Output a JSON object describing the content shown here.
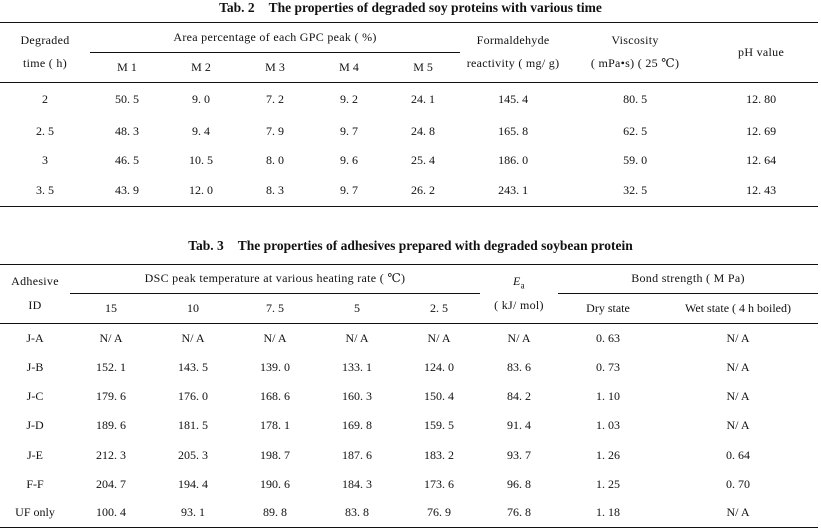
{
  "table2": {
    "caption_num": "Tab. 2",
    "caption_text": "The properties of degraded soy proteins with various time",
    "headers": {
      "degraded_line1": "Degraded",
      "degraded_line2": "time ( h)",
      "area_group": "Area percentage of each GPC peak ( %)",
      "peaks": [
        "M 1",
        "M 2",
        "M 3",
        "M 4",
        "M 5"
      ],
      "formaldehyde_line1": "Formaldehyde",
      "formaldehyde_line2": "reactivity ( mg/ g)",
      "viscosity_line1": "Viscosity",
      "viscosity_line2": "( mPa•s) ( 25 ℃)",
      "ph": "pH value"
    },
    "rows": [
      [
        "2",
        "50. 5",
        "9. 0",
        "7. 2",
        "9. 2",
        "24. 1",
        "145. 4",
        "80. 5",
        "12. 80"
      ],
      [
        "2. 5",
        "48. 3",
        "9. 4",
        "7. 9",
        "9. 7",
        "24. 8",
        "165. 8",
        "62. 5",
        "12. 69"
      ],
      [
        "3",
        "46. 5",
        "10. 5",
        "8. 0",
        "9. 6",
        "25. 4",
        "186. 0",
        "59. 0",
        "12. 64"
      ],
      [
        "3. 5",
        "43. 9",
        "12. 0",
        "8. 3",
        "9. 7",
        "26. 2",
        "243. 1",
        "32. 5",
        "12. 43"
      ]
    ]
  },
  "table3": {
    "caption_num": "Tab. 3",
    "caption_text": "The properties of adhesives prepared with degraded soybean protein",
    "headers": {
      "adhesive_line1": "Adhesive",
      "adhesive_line2": "ID",
      "dsc_group": "DSC peak temperature at various heating rate ( ℃)",
      "rates": [
        "15",
        "10",
        "7. 5",
        "5",
        "2. 5"
      ],
      "ea_symbol": "E",
      "ea_sub": "a",
      "ea_unit": "( kJ/ mol)",
      "bond_group": "Bond strength ( M Pa)",
      "dry": "Dry state",
      "wet": "Wet state ( 4 h boiled)"
    },
    "rows": [
      [
        "J-A",
        "N/ A",
        "N/ A",
        "N/ A",
        "N/ A",
        "N/ A",
        "N/ A",
        "0. 63",
        "N/ A"
      ],
      [
        "J-B",
        "152. 1",
        "143. 5",
        "139. 0",
        "133. 1",
        "124. 0",
        "83. 6",
        "0. 73",
        "N/ A"
      ],
      [
        "J-C",
        "179. 6",
        "176. 0",
        "168. 6",
        "160. 3",
        "150. 4",
        "84. 2",
        "1. 10",
        "N/ A"
      ],
      [
        "J-D",
        "189. 6",
        "181. 5",
        "178. 1",
        "169. 8",
        "159. 5",
        "91. 4",
        "1. 03",
        "N/ A"
      ],
      [
        "J-E",
        "212. 3",
        "205. 3",
        "198. 7",
        "187. 6",
        "183. 2",
        "93. 7",
        "1. 26",
        "0. 64"
      ],
      [
        "F-F",
        "204. 7",
        "194. 4",
        "190. 6",
        "184. 3",
        "173. 6",
        "96. 8",
        "1. 25",
        "0. 70"
      ],
      [
        "UF only",
        "100. 4",
        "93. 1",
        "89. 8",
        "83. 8",
        "76. 9",
        "76. 8",
        "1. 18",
        "N/ A"
      ]
    ]
  }
}
